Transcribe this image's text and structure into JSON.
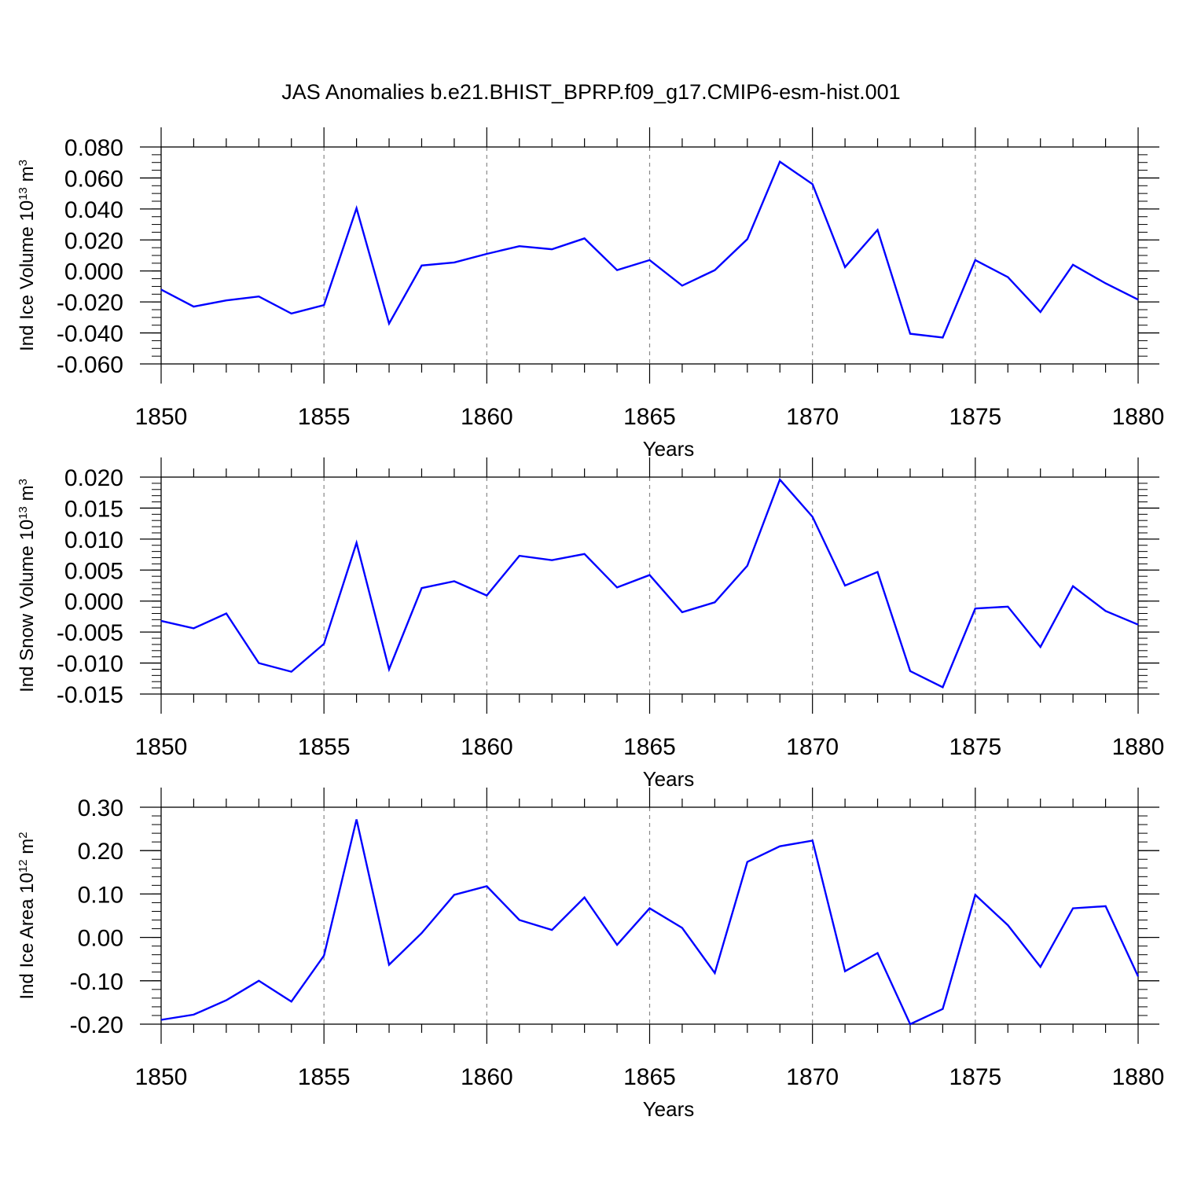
{
  "title": "JAS Anomalies b.e21.BHIST_BPRP.f09_g17.CMIP6-esm-hist.001",
  "colors": {
    "line": "#0000ff",
    "axis": "#000000",
    "grid": "#888888"
  },
  "chart_data": [
    {
      "type": "line",
      "title": "",
      "xlabel": "Years",
      "ylabel": "Ind Ice Volume 10",
      "ylabel_exp": "13",
      "ylabel_unit": " m",
      "ylabel_unit_exp": "3",
      "xlim": [
        1850,
        1880
      ],
      "ylim": [
        -0.06,
        0.08
      ],
      "xticks": [
        1850,
        1855,
        1860,
        1865,
        1870,
        1875,
        1880
      ],
      "xtick_labels": [
        "1850",
        "1855",
        "1860",
        "1865",
        "1870",
        "1875",
        "1880"
      ],
      "yticks": [
        -0.06,
        -0.04,
        -0.02,
        0.0,
        0.02,
        0.04,
        0.06,
        0.08
      ],
      "ytick_labels": [
        "-0.060",
        "-0.040",
        "-0.020",
        "0.000",
        "0.020",
        "0.040",
        "0.060",
        "0.080"
      ],
      "yminor_step": 0.005,
      "vgrid": [
        1855,
        1860,
        1865,
        1870,
        1875
      ],
      "x": [
        1850,
        1851,
        1852,
        1853,
        1854,
        1855,
        1856,
        1857,
        1858,
        1859,
        1860,
        1861,
        1862,
        1863,
        1864,
        1865,
        1866,
        1867,
        1868,
        1869,
        1870,
        1871,
        1872,
        1873,
        1874,
        1875,
        1876,
        1877,
        1878,
        1879,
        1880
      ],
      "series": [
        {
          "name": "Ind Ice Volume",
          "values": [
            -0.012,
            -0.023,
            -0.019,
            -0.0165,
            -0.0275,
            -0.022,
            0.0405,
            -0.034,
            0.0035,
            0.0055,
            0.011,
            0.016,
            0.014,
            0.021,
            0.0005,
            0.007,
            -0.0095,
            0.0005,
            0.0205,
            0.0705,
            0.056,
            0.0025,
            0.0265,
            -0.0405,
            -0.043,
            0.007,
            -0.004,
            -0.0265,
            0.004,
            -0.008,
            -0.0185
          ]
        }
      ]
    },
    {
      "type": "line",
      "title": "",
      "xlabel": "Years",
      "ylabel": "Ind Snow Volume 10",
      "ylabel_exp": "13",
      "ylabel_unit": " m",
      "ylabel_unit_exp": "3",
      "xlim": [
        1850,
        1880
      ],
      "ylim": [
        -0.015,
        0.02
      ],
      "xticks": [
        1850,
        1855,
        1860,
        1865,
        1870,
        1875,
        1880
      ],
      "xtick_labels": [
        "1850",
        "1855",
        "1860",
        "1865",
        "1870",
        "1875",
        "1880"
      ],
      "yticks": [
        -0.015,
        -0.01,
        -0.005,
        0.0,
        0.005,
        0.01,
        0.015,
        0.02
      ],
      "ytick_labels": [
        "-0.015",
        "-0.010",
        "-0.005",
        "0.000",
        "0.005",
        "0.010",
        "0.015",
        "0.020"
      ],
      "yminor_step": 0.001,
      "vgrid": [
        1855,
        1860,
        1865,
        1870,
        1875
      ],
      "x": [
        1850,
        1851,
        1852,
        1853,
        1854,
        1855,
        1856,
        1857,
        1858,
        1859,
        1860,
        1861,
        1862,
        1863,
        1864,
        1865,
        1866,
        1867,
        1868,
        1869,
        1870,
        1871,
        1872,
        1873,
        1874,
        1875,
        1876,
        1877,
        1878,
        1879,
        1880
      ],
      "series": [
        {
          "name": "Ind Snow Volume",
          "values": [
            -0.0032,
            -0.0044,
            -0.002,
            -0.01,
            -0.0114,
            -0.0069,
            0.0094,
            -0.011,
            0.0021,
            0.0032,
            0.0009,
            0.0073,
            0.0066,
            0.0076,
            0.0022,
            0.0042,
            -0.0018,
            -0.0002,
            0.0057,
            0.0196,
            0.0136,
            0.0025,
            0.0047,
            -0.0113,
            -0.0139,
            -0.0012,
            -0.0009,
            -0.0074,
            0.0024,
            -0.0016,
            -0.0038
          ]
        }
      ]
    },
    {
      "type": "line",
      "title": "",
      "xlabel": "Years",
      "ylabel": "Ind Ice Area 10",
      "ylabel_exp": "12",
      "ylabel_unit": " m",
      "ylabel_unit_exp": "2",
      "xlim": [
        1850,
        1880
      ],
      "ylim": [
        -0.2,
        0.3
      ],
      "xticks": [
        1850,
        1855,
        1860,
        1865,
        1870,
        1875,
        1880
      ],
      "xtick_labels": [
        "1850",
        "1855",
        "1860",
        "1865",
        "1870",
        "1875",
        "1880"
      ],
      "yticks": [
        -0.2,
        -0.1,
        0.0,
        0.1,
        0.2,
        0.3
      ],
      "ytick_labels": [
        "-0.20",
        "-0.10",
        "0.00",
        "0.10",
        "0.20",
        "0.30"
      ],
      "yminor_step": 0.02,
      "vgrid": [
        1855,
        1860,
        1865,
        1870,
        1875
      ],
      "x": [
        1850,
        1851,
        1852,
        1853,
        1854,
        1855,
        1856,
        1857,
        1858,
        1859,
        1860,
        1861,
        1862,
        1863,
        1864,
        1865,
        1866,
        1867,
        1868,
        1869,
        1870,
        1871,
        1872,
        1873,
        1874,
        1875,
        1876,
        1877,
        1878,
        1879,
        1880
      ],
      "series": [
        {
          "name": "Ind Ice Area",
          "values": [
            -0.19,
            -0.178,
            -0.145,
            -0.1,
            -0.148,
            -0.042,
            0.272,
            -0.063,
            0.01,
            0.098,
            0.118,
            0.04,
            0.017,
            0.092,
            -0.017,
            0.067,
            0.022,
            -0.082,
            0.174,
            0.21,
            0.223,
            -0.078,
            -0.036,
            -0.2,
            -0.165,
            0.098,
            0.028,
            -0.068,
            0.067,
            0.072,
            -0.09
          ]
        }
      ]
    }
  ]
}
